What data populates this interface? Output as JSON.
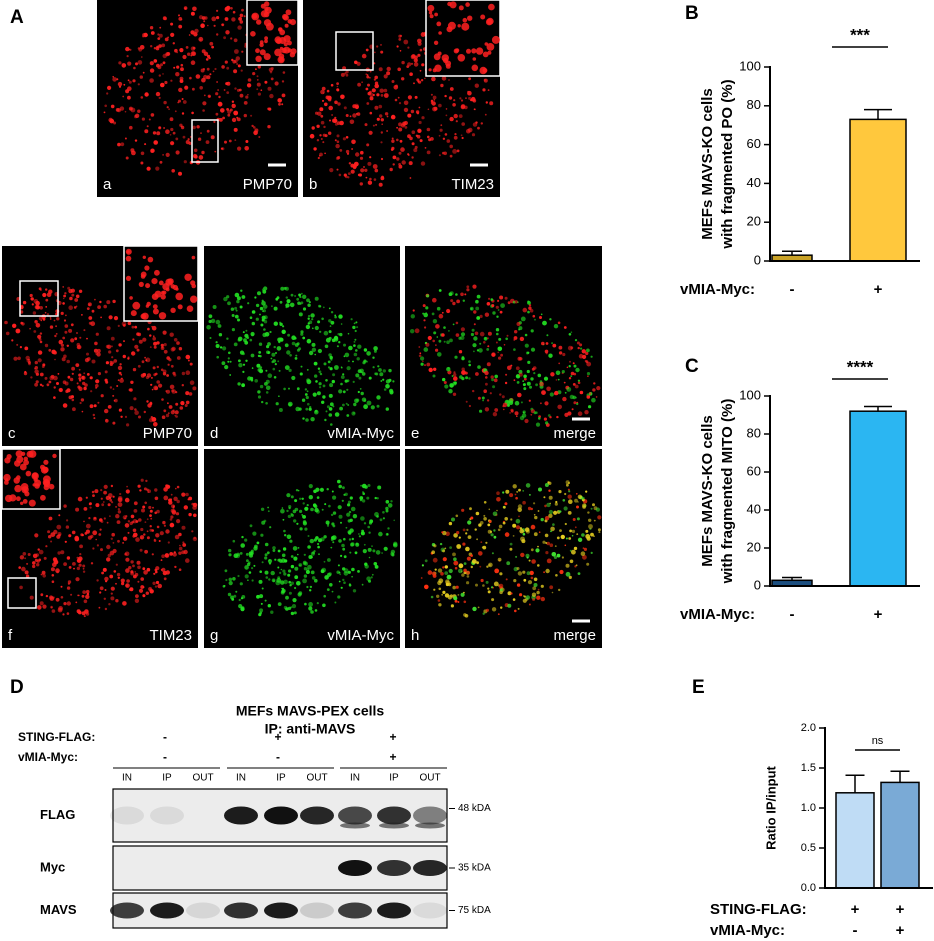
{
  "panel_letters": [
    "A",
    "B",
    "C",
    "D",
    "E"
  ],
  "microscopy": [
    {
      "letter": "a",
      "label": "PMP70"
    },
    {
      "letter": "b",
      "label": "TIM23"
    },
    {
      "letter": "c",
      "label": "PMP70"
    },
    {
      "letter": "d",
      "label": "vMIA-Myc"
    },
    {
      "letter": "e",
      "label": "merge"
    },
    {
      "letter": "f",
      "label": "TIM23"
    },
    {
      "letter": "g",
      "label": "vMIA-Myc"
    },
    {
      "letter": "h",
      "label": "merge"
    }
  ],
  "chart_data": [
    {
      "type": "bar",
      "y_label": [
        "MEFs MAVS-KO cells",
        "with fragmented PO (%)"
      ],
      "values": [
        3,
        73
      ],
      "errors": [
        2,
        5
      ],
      "colors": [
        "#c9a227",
        "#ffc83d"
      ],
      "category_rows": [
        {
          "name": "vMIA-Myc:",
          "labels": [
            "-",
            "+"
          ]
        }
      ],
      "significance": "***",
      "ylim": [
        0,
        100
      ],
      "yticks": [
        0,
        20,
        40,
        60,
        80,
        100
      ]
    },
    {
      "type": "bar",
      "y_label": [
        "MEFs MAVS-KO cells",
        "with fragmented MITO (%)"
      ],
      "values": [
        3,
        92
      ],
      "errors": [
        1.5,
        2.5
      ],
      "colors": [
        "#1c4f80",
        "#2bb6f2"
      ],
      "category_rows": [
        {
          "name": "vMIA-Myc:",
          "labels": [
            "-",
            "+"
          ]
        }
      ],
      "significance": "****",
      "ylim": [
        0,
        100
      ],
      "yticks": [
        0,
        20,
        40,
        60,
        80,
        100
      ]
    },
    {
      "type": "bar",
      "y_label": [
        "Ratio IP/input"
      ],
      "values": [
        1.19,
        1.32
      ],
      "errors": [
        0.22,
        0.14
      ],
      "colors": [
        "#bfdcf5",
        "#7aaad6"
      ],
      "category_rows": [
        {
          "name": "STING-FLAG:",
          "labels": [
            "+",
            "+"
          ]
        },
        {
          "name": "vMIA-Myc:",
          "labels": [
            "-",
            "+"
          ]
        }
      ],
      "significance": "ns",
      "ylim": [
        0,
        2
      ],
      "yticks": [
        {
          "value": 0,
          "label": "0.0"
        },
        0.5,
        {
          "value": 1,
          "label": "1.0"
        },
        1.5,
        {
          "value": 2,
          "label": "2.0"
        }
      ]
    }
  ],
  "blot": {
    "title": [
      "MEFs MAVS-PEX cells",
      "IP: anti-MAVS"
    ],
    "conditions": [
      {
        "name": "STING-FLAG:",
        "labels": [
          "-",
          "+",
          "+"
        ]
      },
      {
        "name": "vMIA-Myc:",
        "labels": [
          "-",
          "-",
          "+"
        ]
      }
    ],
    "lanes": [
      "IN",
      "IP",
      "OUT",
      "IN",
      "IP",
      "OUT",
      "IN",
      "IP",
      "OUT"
    ],
    "rows": [
      {
        "name": "FLAG",
        "marker": "48 kDA"
      },
      {
        "name": "Myc",
        "marker": "35 kDA"
      },
      {
        "name": "MAVS",
        "marker": "75 kDA"
      }
    ]
  }
}
